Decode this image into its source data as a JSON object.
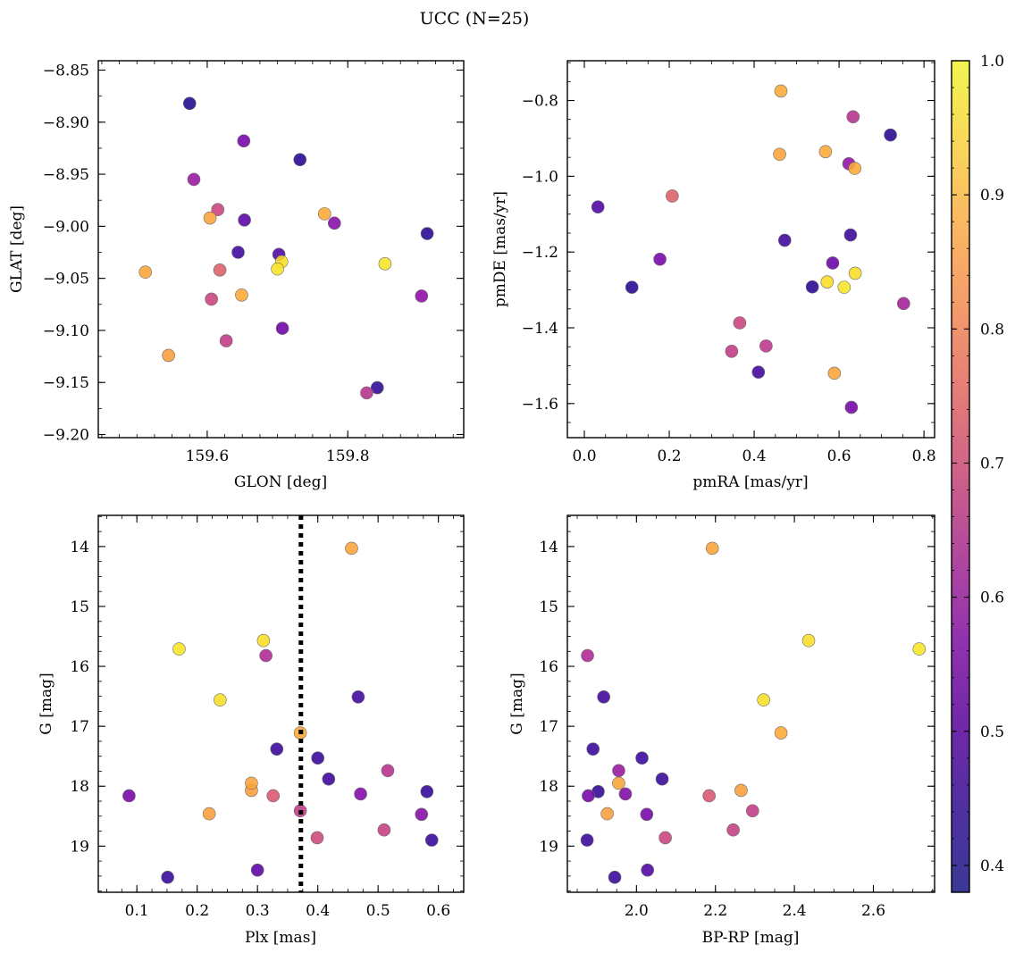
{
  "figure": {
    "title": "UCC (N=25)"
  },
  "colorbar": {
    "cmap": "plasma",
    "range": [
      0.38,
      1.0
    ],
    "ticks": [
      0.4,
      0.5,
      0.6,
      0.7,
      0.8,
      0.9,
      1.0
    ],
    "tick_labels": [
      "0.4",
      "0.5",
      "0.6",
      "0.7",
      "0.8",
      "0.9",
      "1.0"
    ]
  },
  "chart_data": [
    {
      "type": "scatter",
      "xlabel": "GLON [deg]",
      "ylabel": "GLAT [deg]",
      "xlim": [
        159.445,
        159.965
      ],
      "ylim": [
        -9.203,
        -8.841
      ],
      "xticks": [
        159.6,
        159.8
      ],
      "xtick_labels": [
        "159.6",
        "159.8"
      ],
      "yticks": [
        -8.85,
        -8.9,
        -8.95,
        -9.0,
        -9.05,
        -9.1,
        -9.15,
        -9.2
      ],
      "ytick_labels": [
        "−8.85",
        "−8.90",
        "−8.95",
        "−9.00",
        "−9.05",
        "−9.10",
        "−9.15",
        "−9.20"
      ],
      "points": [
        {
          "x": 159.575,
          "y": -8.882,
          "c": 0.4
        },
        {
          "x": 159.652,
          "y": -8.918,
          "c": 0.52
        },
        {
          "x": 159.732,
          "y": -8.936,
          "c": 0.41
        },
        {
          "x": 159.581,
          "y": -8.955,
          "c": 0.58
        },
        {
          "x": 159.615,
          "y": -8.984,
          "c": 0.68
        },
        {
          "x": 159.604,
          "y": -8.992,
          "c": 0.87
        },
        {
          "x": 159.653,
          "y": -8.994,
          "c": 0.48
        },
        {
          "x": 159.767,
          "y": -8.988,
          "c": 0.88
        },
        {
          "x": 159.781,
          "y": -8.997,
          "c": 0.55
        },
        {
          "x": 159.913,
          "y": -9.007,
          "c": 0.41
        },
        {
          "x": 159.644,
          "y": -9.025,
          "c": 0.44
        },
        {
          "x": 159.702,
          "y": -9.027,
          "c": 0.46
        },
        {
          "x": 159.706,
          "y": -9.034,
          "c": 0.96
        },
        {
          "x": 159.7,
          "y": -9.041,
          "c": 0.97
        },
        {
          "x": 159.853,
          "y": -9.036,
          "c": 0.97
        },
        {
          "x": 159.618,
          "y": -9.042,
          "c": 0.74
        },
        {
          "x": 159.512,
          "y": -9.044,
          "c": 0.87
        },
        {
          "x": 159.649,
          "y": -9.066,
          "c": 0.88
        },
        {
          "x": 159.606,
          "y": -9.07,
          "c": 0.68
        },
        {
          "x": 159.905,
          "y": -9.067,
          "c": 0.56
        },
        {
          "x": 159.707,
          "y": -9.098,
          "c": 0.51
        },
        {
          "x": 159.627,
          "y": -9.11,
          "c": 0.66
        },
        {
          "x": 159.545,
          "y": -9.124,
          "c": 0.86
        },
        {
          "x": 159.842,
          "y": -9.155,
          "c": 0.42
        },
        {
          "x": 159.827,
          "y": -9.16,
          "c": 0.64
        }
      ]
    },
    {
      "type": "scatter",
      "xlabel": "pmRA [mas/yr]",
      "ylabel": "pmDE [mas/yr]",
      "xlim": [
        -0.04,
        0.825
      ],
      "ylim": [
        -1.69,
        -0.695
      ],
      "xticks": [
        0.0,
        0.2,
        0.4,
        0.6,
        0.8
      ],
      "xtick_labels": [
        "0.0",
        "0.2",
        "0.4",
        "0.6",
        "0.8"
      ],
      "yticks": [
        -0.8,
        -1.0,
        -1.2,
        -1.4,
        -1.6
      ],
      "ytick_labels": [
        "−0.8",
        "−1.0",
        "−1.2",
        "−1.4",
        "−1.6"
      ],
      "points": [
        {
          "x": 0.463,
          "y": -0.775,
          "c": 0.88
        },
        {
          "x": 0.633,
          "y": -0.843,
          "c": 0.64
        },
        {
          "x": 0.721,
          "y": -0.891,
          "c": 0.41
        },
        {
          "x": 0.568,
          "y": -0.935,
          "c": 0.88
        },
        {
          "x": 0.46,
          "y": -0.942,
          "c": 0.87
        },
        {
          "x": 0.623,
          "y": -0.967,
          "c": 0.57
        },
        {
          "x": 0.637,
          "y": -0.979,
          "c": 0.88
        },
        {
          "x": 0.207,
          "y": -1.052,
          "c": 0.74
        },
        {
          "x": 0.032,
          "y": -1.081,
          "c": 0.46
        },
        {
          "x": 0.472,
          "y": -1.169,
          "c": 0.44
        },
        {
          "x": 0.627,
          "y": -1.155,
          "c": 0.43
        },
        {
          "x": 0.178,
          "y": -1.219,
          "c": 0.52
        },
        {
          "x": 0.585,
          "y": -1.229,
          "c": 0.5
        },
        {
          "x": 0.638,
          "y": -1.256,
          "c": 0.96
        },
        {
          "x": 0.572,
          "y": -1.279,
          "c": 0.96
        },
        {
          "x": 0.112,
          "y": -1.293,
          "c": 0.41
        },
        {
          "x": 0.537,
          "y": -1.292,
          "c": 0.41
        },
        {
          "x": 0.612,
          "y": -1.293,
          "c": 0.97
        },
        {
          "x": 0.752,
          "y": -1.336,
          "c": 0.6
        },
        {
          "x": 0.366,
          "y": -1.387,
          "c": 0.68
        },
        {
          "x": 0.428,
          "y": -1.448,
          "c": 0.65
        },
        {
          "x": 0.347,
          "y": -1.462,
          "c": 0.66
        },
        {
          "x": 0.41,
          "y": -1.517,
          "c": 0.44
        },
        {
          "x": 0.589,
          "y": -1.52,
          "c": 0.87
        },
        {
          "x": 0.629,
          "y": -1.61,
          "c": 0.52
        }
      ]
    },
    {
      "type": "scatter",
      "xlabel": "Plx [mas]",
      "ylabel": "G [mag]",
      "xlim": [
        0.036,
        0.642
      ],
      "ylim": [
        19.77,
        13.48
      ],
      "xticks": [
        0.1,
        0.2,
        0.3,
        0.4,
        0.5,
        0.6
      ],
      "xtick_labels": [
        "0.1",
        "0.2",
        "0.3",
        "0.4",
        "0.5",
        "0.6"
      ],
      "yticks": [
        14,
        15,
        16,
        17,
        18,
        19
      ],
      "ytick_labels": [
        "14",
        "15",
        "16",
        "17",
        "18",
        "19"
      ],
      "vline": {
        "x": 0.372,
        "style": "dotted",
        "color": "#000000"
      },
      "points": [
        {
          "x": 0.456,
          "y": 14.03,
          "c": 0.87
        },
        {
          "x": 0.31,
          "y": 15.57,
          "c": 0.96
        },
        {
          "x": 0.17,
          "y": 15.71,
          "c": 0.97
        },
        {
          "x": 0.314,
          "y": 15.82,
          "c": 0.62
        },
        {
          "x": 0.467,
          "y": 16.51,
          "c": 0.44
        },
        {
          "x": 0.238,
          "y": 16.56,
          "c": 0.96
        },
        {
          "x": 0.371,
          "y": 17.11,
          "c": 0.88
        },
        {
          "x": 0.332,
          "y": 17.38,
          "c": 0.43
        },
        {
          "x": 0.4,
          "y": 17.53,
          "c": 0.43
        },
        {
          "x": 0.516,
          "y": 17.74,
          "c": 0.64
        },
        {
          "x": 0.418,
          "y": 17.88,
          "c": 0.43
        },
        {
          "x": 0.29,
          "y": 17.95,
          "c": 0.87
        },
        {
          "x": 0.29,
          "y": 18.07,
          "c": 0.86
        },
        {
          "x": 0.581,
          "y": 18.09,
          "c": 0.42
        },
        {
          "x": 0.471,
          "y": 18.13,
          "c": 0.54
        },
        {
          "x": 0.326,
          "y": 18.16,
          "c": 0.72
        },
        {
          "x": 0.087,
          "y": 18.16,
          "c": 0.52
        },
        {
          "x": 0.371,
          "y": 18.41,
          "c": 0.66
        },
        {
          "x": 0.22,
          "y": 18.46,
          "c": 0.86
        },
        {
          "x": 0.572,
          "y": 18.47,
          "c": 0.55
        },
        {
          "x": 0.51,
          "y": 18.73,
          "c": 0.67
        },
        {
          "x": 0.399,
          "y": 18.86,
          "c": 0.69
        },
        {
          "x": 0.589,
          "y": 18.9,
          "c": 0.43
        },
        {
          "x": 0.3,
          "y": 19.4,
          "c": 0.48
        },
        {
          "x": 0.151,
          "y": 19.52,
          "c": 0.43
        }
      ]
    },
    {
      "type": "scatter",
      "xlabel": "BP-RP [mag]",
      "ylabel": "G [mag]",
      "xlim": [
        1.825,
        2.755
      ],
      "ylim": [
        19.77,
        13.48
      ],
      "xticks": [
        2.0,
        2.2,
        2.4,
        2.6
      ],
      "xtick_labels": [
        "2.0",
        "2.2",
        "2.4",
        "2.6"
      ],
      "yticks": [
        14,
        15,
        16,
        17,
        18,
        19
      ],
      "ytick_labels": [
        "14",
        "15",
        "16",
        "17",
        "18",
        "19"
      ],
      "points": [
        {
          "x": 2.192,
          "y": 14.03,
          "c": 0.87
        },
        {
          "x": 2.436,
          "y": 15.57,
          "c": 0.96
        },
        {
          "x": 2.716,
          "y": 15.71,
          "c": 0.97
        },
        {
          "x": 1.876,
          "y": 15.82,
          "c": 0.62
        },
        {
          "x": 1.917,
          "y": 16.51,
          "c": 0.44
        },
        {
          "x": 2.322,
          "y": 16.56,
          "c": 0.96
        },
        {
          "x": 2.366,
          "y": 17.11,
          "c": 0.88
        },
        {
          "x": 1.89,
          "y": 17.38,
          "c": 0.43
        },
        {
          "x": 2.014,
          "y": 17.53,
          "c": 0.43
        },
        {
          "x": 1.955,
          "y": 17.74,
          "c": 0.58
        },
        {
          "x": 2.065,
          "y": 17.88,
          "c": 0.43
        },
        {
          "x": 1.955,
          "y": 17.95,
          "c": 0.87
        },
        {
          "x": 2.265,
          "y": 18.07,
          "c": 0.86
        },
        {
          "x": 1.903,
          "y": 18.09,
          "c": 0.42
        },
        {
          "x": 1.972,
          "y": 18.13,
          "c": 0.54
        },
        {
          "x": 2.184,
          "y": 18.16,
          "c": 0.72
        },
        {
          "x": 1.878,
          "y": 18.16,
          "c": 0.52
        },
        {
          "x": 2.294,
          "y": 18.41,
          "c": 0.66
        },
        {
          "x": 1.926,
          "y": 18.46,
          "c": 0.86
        },
        {
          "x": 2.026,
          "y": 18.47,
          "c": 0.52
        },
        {
          "x": 2.245,
          "y": 18.73,
          "c": 0.67
        },
        {
          "x": 2.073,
          "y": 18.86,
          "c": 0.68
        },
        {
          "x": 1.875,
          "y": 18.9,
          "c": 0.43
        },
        {
          "x": 2.028,
          "y": 19.4,
          "c": 0.46
        },
        {
          "x": 1.945,
          "y": 19.52,
          "c": 0.43
        }
      ]
    }
  ]
}
